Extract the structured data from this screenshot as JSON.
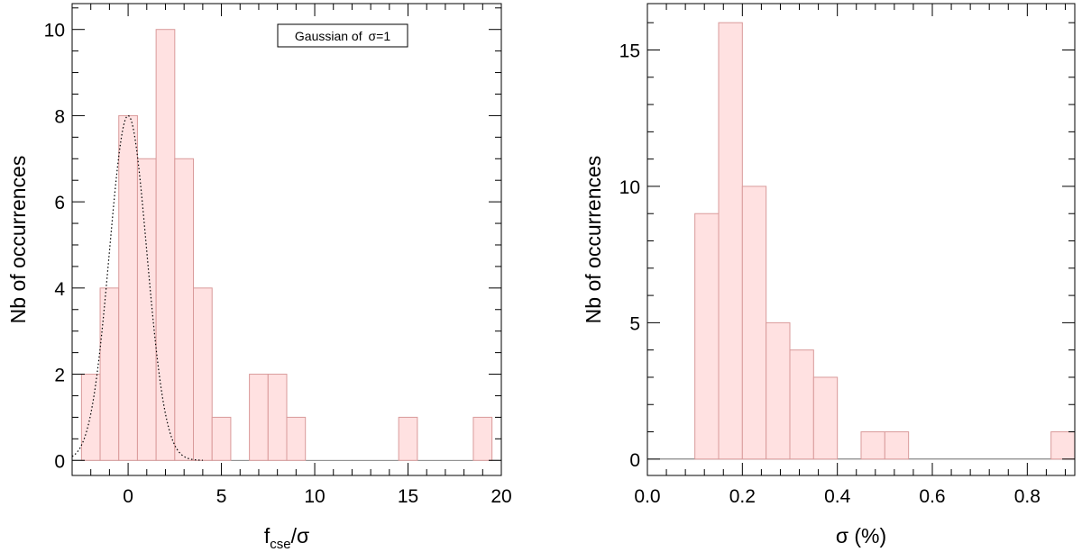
{
  "chart_data": [
    {
      "type": "bar",
      "xlabel_main": "f",
      "xlabel_sub": "cse",
      "xlabel_tail": "/σ",
      "ylabel": "Nb of occurrences",
      "xlim": [
        -3,
        20
      ],
      "ylim": [
        -0.35,
        10.6
      ],
      "xticks": [
        0,
        5,
        10,
        15,
        20
      ],
      "xtick_labels": [
        "0",
        "5",
        "10",
        "15",
        "20"
      ],
      "yticks": [
        0,
        2,
        4,
        6,
        8,
        10
      ],
      "ytick_labels": [
        "0",
        "2",
        "4",
        "6",
        "8",
        "10"
      ],
      "bins": [
        {
          "x0": -2.5,
          "x1": -1.5,
          "value": 2
        },
        {
          "x0": -1.5,
          "x1": -0.5,
          "value": 4
        },
        {
          "x0": -0.5,
          "x1": 0.5,
          "value": 8
        },
        {
          "x0": 0.5,
          "x1": 1.5,
          "value": 7
        },
        {
          "x0": 1.5,
          "x1": 2.5,
          "value": 10
        },
        {
          "x0": 2.5,
          "x1": 3.5,
          "value": 7
        },
        {
          "x0": 3.5,
          "x1": 4.5,
          "value": 4
        },
        {
          "x0": 4.5,
          "x1": 5.5,
          "value": 1
        },
        {
          "x0": 5.5,
          "x1": 6.5,
          "value": 0
        },
        {
          "x0": 6.5,
          "x1": 7.5,
          "value": 2
        },
        {
          "x0": 7.5,
          "x1": 8.5,
          "value": 2
        },
        {
          "x0": 8.5,
          "x1": 9.5,
          "value": 1
        },
        {
          "x0": 9.5,
          "x1": 10.5,
          "value": 0
        },
        {
          "x0": 10.5,
          "x1": 11.5,
          "value": 0
        },
        {
          "x0": 11.5,
          "x1": 12.5,
          "value": 0
        },
        {
          "x0": 12.5,
          "x1": 13.5,
          "value": 0
        },
        {
          "x0": 13.5,
          "x1": 14.5,
          "value": 0
        },
        {
          "x0": 14.5,
          "x1": 15.5,
          "value": 1
        },
        {
          "x0": 15.5,
          "x1": 16.5,
          "value": 0
        },
        {
          "x0": 16.5,
          "x1": 17.5,
          "value": 0
        },
        {
          "x0": 17.5,
          "x1": 18.5,
          "value": 0
        },
        {
          "x0": 18.5,
          "x1": 19.5,
          "value": 1
        }
      ],
      "overlay": {
        "type": "gaussian",
        "mean": 0,
        "sigma": 1,
        "peak": 8,
        "style": "dotted"
      },
      "legend": {
        "label_prefix": "Gaussian of ",
        "label_symbol": "σ=1",
        "placement": "top-center"
      },
      "bar_fill": "#ffe1e1",
      "bar_edge": "#d99a9a"
    },
    {
      "type": "bar",
      "xlabel": "σ (%)",
      "ylabel": "Nb of occurrences",
      "xlim": [
        0,
        0.9
      ],
      "ylim": [
        -0.6,
        16.7
      ],
      "xticks": [
        0.0,
        0.2,
        0.4,
        0.6,
        0.8
      ],
      "xtick_labels": [
        "0.0",
        "0.2",
        "0.4",
        "0.6",
        "0.8"
      ],
      "yticks": [
        0,
        5,
        10,
        15
      ],
      "ytick_labels": [
        "0",
        "5",
        "10",
        "15"
      ],
      "bins": [
        {
          "x0": 0.1,
          "x1": 0.15,
          "value": 9
        },
        {
          "x0": 0.15,
          "x1": 0.2,
          "value": 16
        },
        {
          "x0": 0.2,
          "x1": 0.25,
          "value": 10
        },
        {
          "x0": 0.25,
          "x1": 0.3,
          "value": 5
        },
        {
          "x0": 0.3,
          "x1": 0.35,
          "value": 4
        },
        {
          "x0": 0.35,
          "x1": 0.4,
          "value": 3
        },
        {
          "x0": 0.4,
          "x1": 0.45,
          "value": 0
        },
        {
          "x0": 0.45,
          "x1": 0.5,
          "value": 1
        },
        {
          "x0": 0.5,
          "x1": 0.55,
          "value": 1
        },
        {
          "x0": 0.55,
          "x1": 0.6,
          "value": 0
        },
        {
          "x0": 0.6,
          "x1": 0.65,
          "value": 0
        },
        {
          "x0": 0.65,
          "x1": 0.7,
          "value": 0
        },
        {
          "x0": 0.7,
          "x1": 0.75,
          "value": 0
        },
        {
          "x0": 0.75,
          "x1": 0.8,
          "value": 0
        },
        {
          "x0": 0.8,
          "x1": 0.85,
          "value": 0
        },
        {
          "x0": 0.85,
          "x1": 0.9,
          "value": 1
        }
      ],
      "bar_fill": "#ffe1e1",
      "bar_edge": "#d99a9a"
    }
  ]
}
